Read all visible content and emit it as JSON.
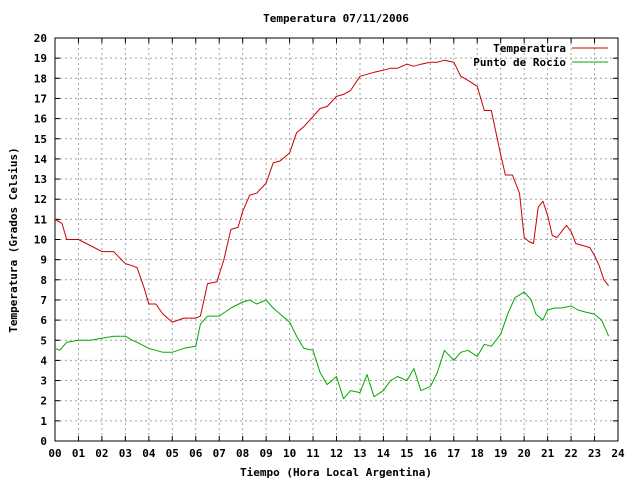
{
  "chart_data": {
    "type": "line",
    "title": "Temperatura 07/11/2006",
    "xlabel": "Tiempo (Hora Local Argentina)",
    "ylabel": "Temperatura (Grados Celsius)",
    "xlim": [
      0,
      24
    ],
    "ylim": [
      0,
      20
    ],
    "x_tick_labels": [
      "00",
      "01",
      "02",
      "03",
      "04",
      "05",
      "06",
      "07",
      "08",
      "09",
      "10",
      "11",
      "12",
      "13",
      "14",
      "15",
      "16",
      "17",
      "18",
      "19",
      "20",
      "21",
      "22",
      "23",
      "24"
    ],
    "y_ticks": [
      0,
      1,
      2,
      3,
      4,
      5,
      6,
      7,
      8,
      9,
      10,
      11,
      12,
      13,
      14,
      15,
      16,
      17,
      18,
      19,
      20
    ],
    "grid": true,
    "legend_position": "top-right",
    "series": [
      {
        "name": "Temperatura",
        "color": "#cc0000",
        "x": [
          0,
          0.3,
          0.5,
          1,
          1.5,
          2,
          2.5,
          3,
          3.3,
          3.5,
          3.8,
          4,
          4.3,
          4.6,
          5,
          5.5,
          6,
          6.2,
          6.5,
          6.9,
          7.2,
          7.5,
          7.8,
          8,
          8.3,
          8.6,
          9,
          9.3,
          9.6,
          10,
          10.3,
          10.6,
          11,
          11.3,
          11.6,
          12,
          12.3,
          12.6,
          13,
          13.3,
          13.6,
          14,
          14.3,
          14.6,
          15,
          15.3,
          15.6,
          16,
          16.3,
          16.6,
          17,
          17.3,
          17.6,
          18,
          18.3,
          18.6,
          19,
          19.2,
          19.5,
          19.8,
          20,
          20.2,
          20.4,
          20.6,
          20.8,
          21,
          21.2,
          21.4,
          21.6,
          21.8,
          22,
          22.2,
          22.5,
          22.8,
          23,
          23.2,
          23.4,
          23.6
        ],
        "y": [
          11,
          10.8,
          10,
          10,
          9.7,
          9.4,
          9.4,
          8.8,
          8.7,
          8.6,
          7.6,
          6.8,
          6.8,
          6.3,
          5.9,
          6.1,
          6.1,
          6.2,
          7.8,
          7.9,
          9,
          10.5,
          10.6,
          11.4,
          12.2,
          12.3,
          12.8,
          13.8,
          13.9,
          14.3,
          15.3,
          15.6,
          16.1,
          16.5,
          16.6,
          17.1,
          17.2,
          17.4,
          18.1,
          18.2,
          18.3,
          18.4,
          18.5,
          18.5,
          18.7,
          18.6,
          18.7,
          18.8,
          18.8,
          18.9,
          18.8,
          18.1,
          17.9,
          17.6,
          16.4,
          16.4,
          14.2,
          13.2,
          13.2,
          12.3,
          10.1,
          9.9,
          9.8,
          11.6,
          11.9,
          11.2,
          10.2,
          10.1,
          10.4,
          10.7,
          10.4,
          9.8,
          9.7,
          9.6,
          9.2,
          8.7,
          8.0,
          7.7
        ]
      },
      {
        "name": "Punto de Rocío",
        "color": "#00aa00",
        "x": [
          0,
          0.2,
          0.5,
          1,
          1.5,
          2,
          2.5,
          3,
          3.3,
          3.5,
          4,
          4.3,
          4.6,
          5,
          5.5,
          6,
          6.2,
          6.5,
          7,
          7.5,
          8,
          8.3,
          8.6,
          9,
          9.3,
          9.6,
          10,
          10.3,
          10.6,
          11,
          11.3,
          11.6,
          12,
          12.3,
          12.6,
          13,
          13.3,
          13.6,
          14,
          14.3,
          14.6,
          15,
          15.3,
          15.6,
          16,
          16.3,
          16.6,
          17,
          17.3,
          17.6,
          18,
          18.3,
          18.6,
          19,
          19.3,
          19.6,
          20,
          20.3,
          20.5,
          20.8,
          21,
          21.3,
          21.6,
          22,
          22.3,
          22.6,
          23,
          23.3,
          23.6
        ],
        "y": [
          4.6,
          4.5,
          4.9,
          5.0,
          5.0,
          5.1,
          5.2,
          5.2,
          5.0,
          4.9,
          4.6,
          4.5,
          4.4,
          4.4,
          4.6,
          4.7,
          5.8,
          6.2,
          6.2,
          6.6,
          6.9,
          7.0,
          6.8,
          7.0,
          6.6,
          6.3,
          5.9,
          5.2,
          4.6,
          4.5,
          3.4,
          2.8,
          3.2,
          2.1,
          2.5,
          2.4,
          3.3,
          2.2,
          2.5,
          3.0,
          3.2,
          3.0,
          3.6,
          2.5,
          2.7,
          3.4,
          4.5,
          4.0,
          4.4,
          4.5,
          4.2,
          4.8,
          4.7,
          5.3,
          6.3,
          7.1,
          7.4,
          7.0,
          6.3,
          6.0,
          6.5,
          6.6,
          6.6,
          6.7,
          6.5,
          6.4,
          6.3,
          6.0,
          5.2
        ]
      }
    ]
  }
}
